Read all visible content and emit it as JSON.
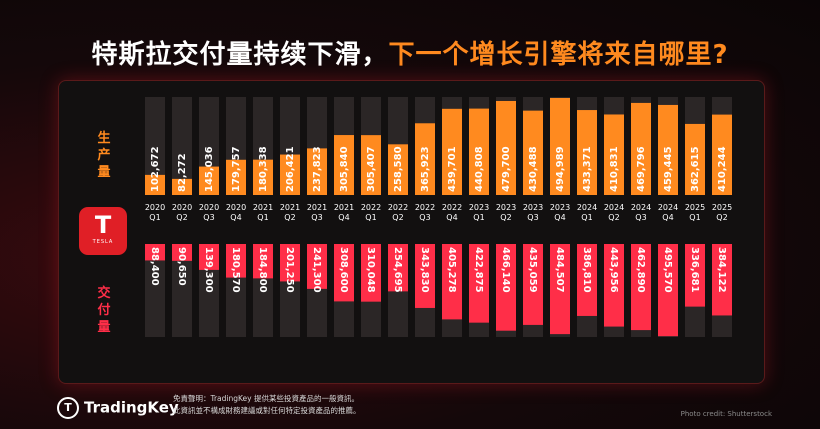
{
  "title_main": "特斯拉交付量持续下滑，",
  "title_highlight": "下一个增长引擎将来自哪里?",
  "production_label": "生产量",
  "delivery_label": "交付量",
  "logo_text": "TESLA",
  "logo_mark": "T",
  "brand": "TradingKey",
  "disclaimer_line1": "免責聲明：TradingKey 提供某些投資產品的一般資訊。",
  "disclaimer_line2": "此資訊並不構成財務建議或對任何特定投資產品的推薦。",
  "photo_credit": "Photo credit: Shutterstock",
  "colors": {
    "production": "#ff8a1f",
    "delivery": "#ff2e48",
    "accent": "#ff8a1f"
  },
  "chart_data": {
    "type": "bar",
    "categories": [
      [
        "2020",
        "Q1"
      ],
      [
        "2020",
        "Q2"
      ],
      [
        "2020",
        "Q3"
      ],
      [
        "2020",
        "Q4"
      ],
      [
        "2021",
        "Q1"
      ],
      [
        "2021",
        "Q2"
      ],
      [
        "2021",
        "Q3"
      ],
      [
        "2021",
        "Q4"
      ],
      [
        "2022",
        "Q1"
      ],
      [
        "2022",
        "Q2"
      ],
      [
        "2022",
        "Q3"
      ],
      [
        "2022",
        "Q4"
      ],
      [
        "2023",
        "Q1"
      ],
      [
        "2023",
        "Q2"
      ],
      [
        "2023",
        "Q3"
      ],
      [
        "2023",
        "Q4"
      ],
      [
        "2024",
        "Q1"
      ],
      [
        "2024",
        "Q2"
      ],
      [
        "2024",
        "Q3"
      ],
      [
        "2024",
        "Q4"
      ],
      [
        "2025",
        "Q1"
      ],
      [
        "2025",
        "Q2"
      ]
    ],
    "series": [
      {
        "name": "生产量",
        "values": [
          102672,
          82272,
          145036,
          179757,
          180338,
          206421,
          237823,
          305840,
          305407,
          258580,
          365923,
          439701,
          440808,
          479700,
          430488,
          494989,
          433371,
          410831,
          469796,
          459445,
          362615,
          410244
        ],
        "labels": [
          "102,672",
          "82,272",
          "145,036",
          "179,757",
          "180,338",
          "206,421",
          "237,823",
          "305,840",
          "305,407",
          "258,580",
          "365,923",
          "439,701",
          "440,808",
          "479,700",
          "430,488",
          "494,989",
          "433,371",
          "410,831",
          "469,796",
          "459,445",
          "362,615",
          "410,244"
        ]
      },
      {
        "name": "交付量",
        "values": [
          88400,
          90650,
          139300,
          180570,
          184800,
          201250,
          241300,
          308600,
          310048,
          254695,
          343830,
          405278,
          422875,
          466140,
          435059,
          484507,
          386810,
          443956,
          462890,
          495570,
          336681,
          384122
        ],
        "labels": [
          "88,400",
          "90,650",
          "139,300",
          "180,570",
          "184,800",
          "201,250",
          "241,300",
          "308,600",
          "310,048",
          "254,695",
          "343,830",
          "405,278",
          "422,875",
          "466,140",
          "435,059",
          "484,507",
          "386,810",
          "443,956",
          "462,890",
          "495,570",
          "336,681",
          "384,122"
        ]
      }
    ],
    "ylim": [
      0,
      500000
    ],
    "grid": false,
    "legend": "left"
  }
}
